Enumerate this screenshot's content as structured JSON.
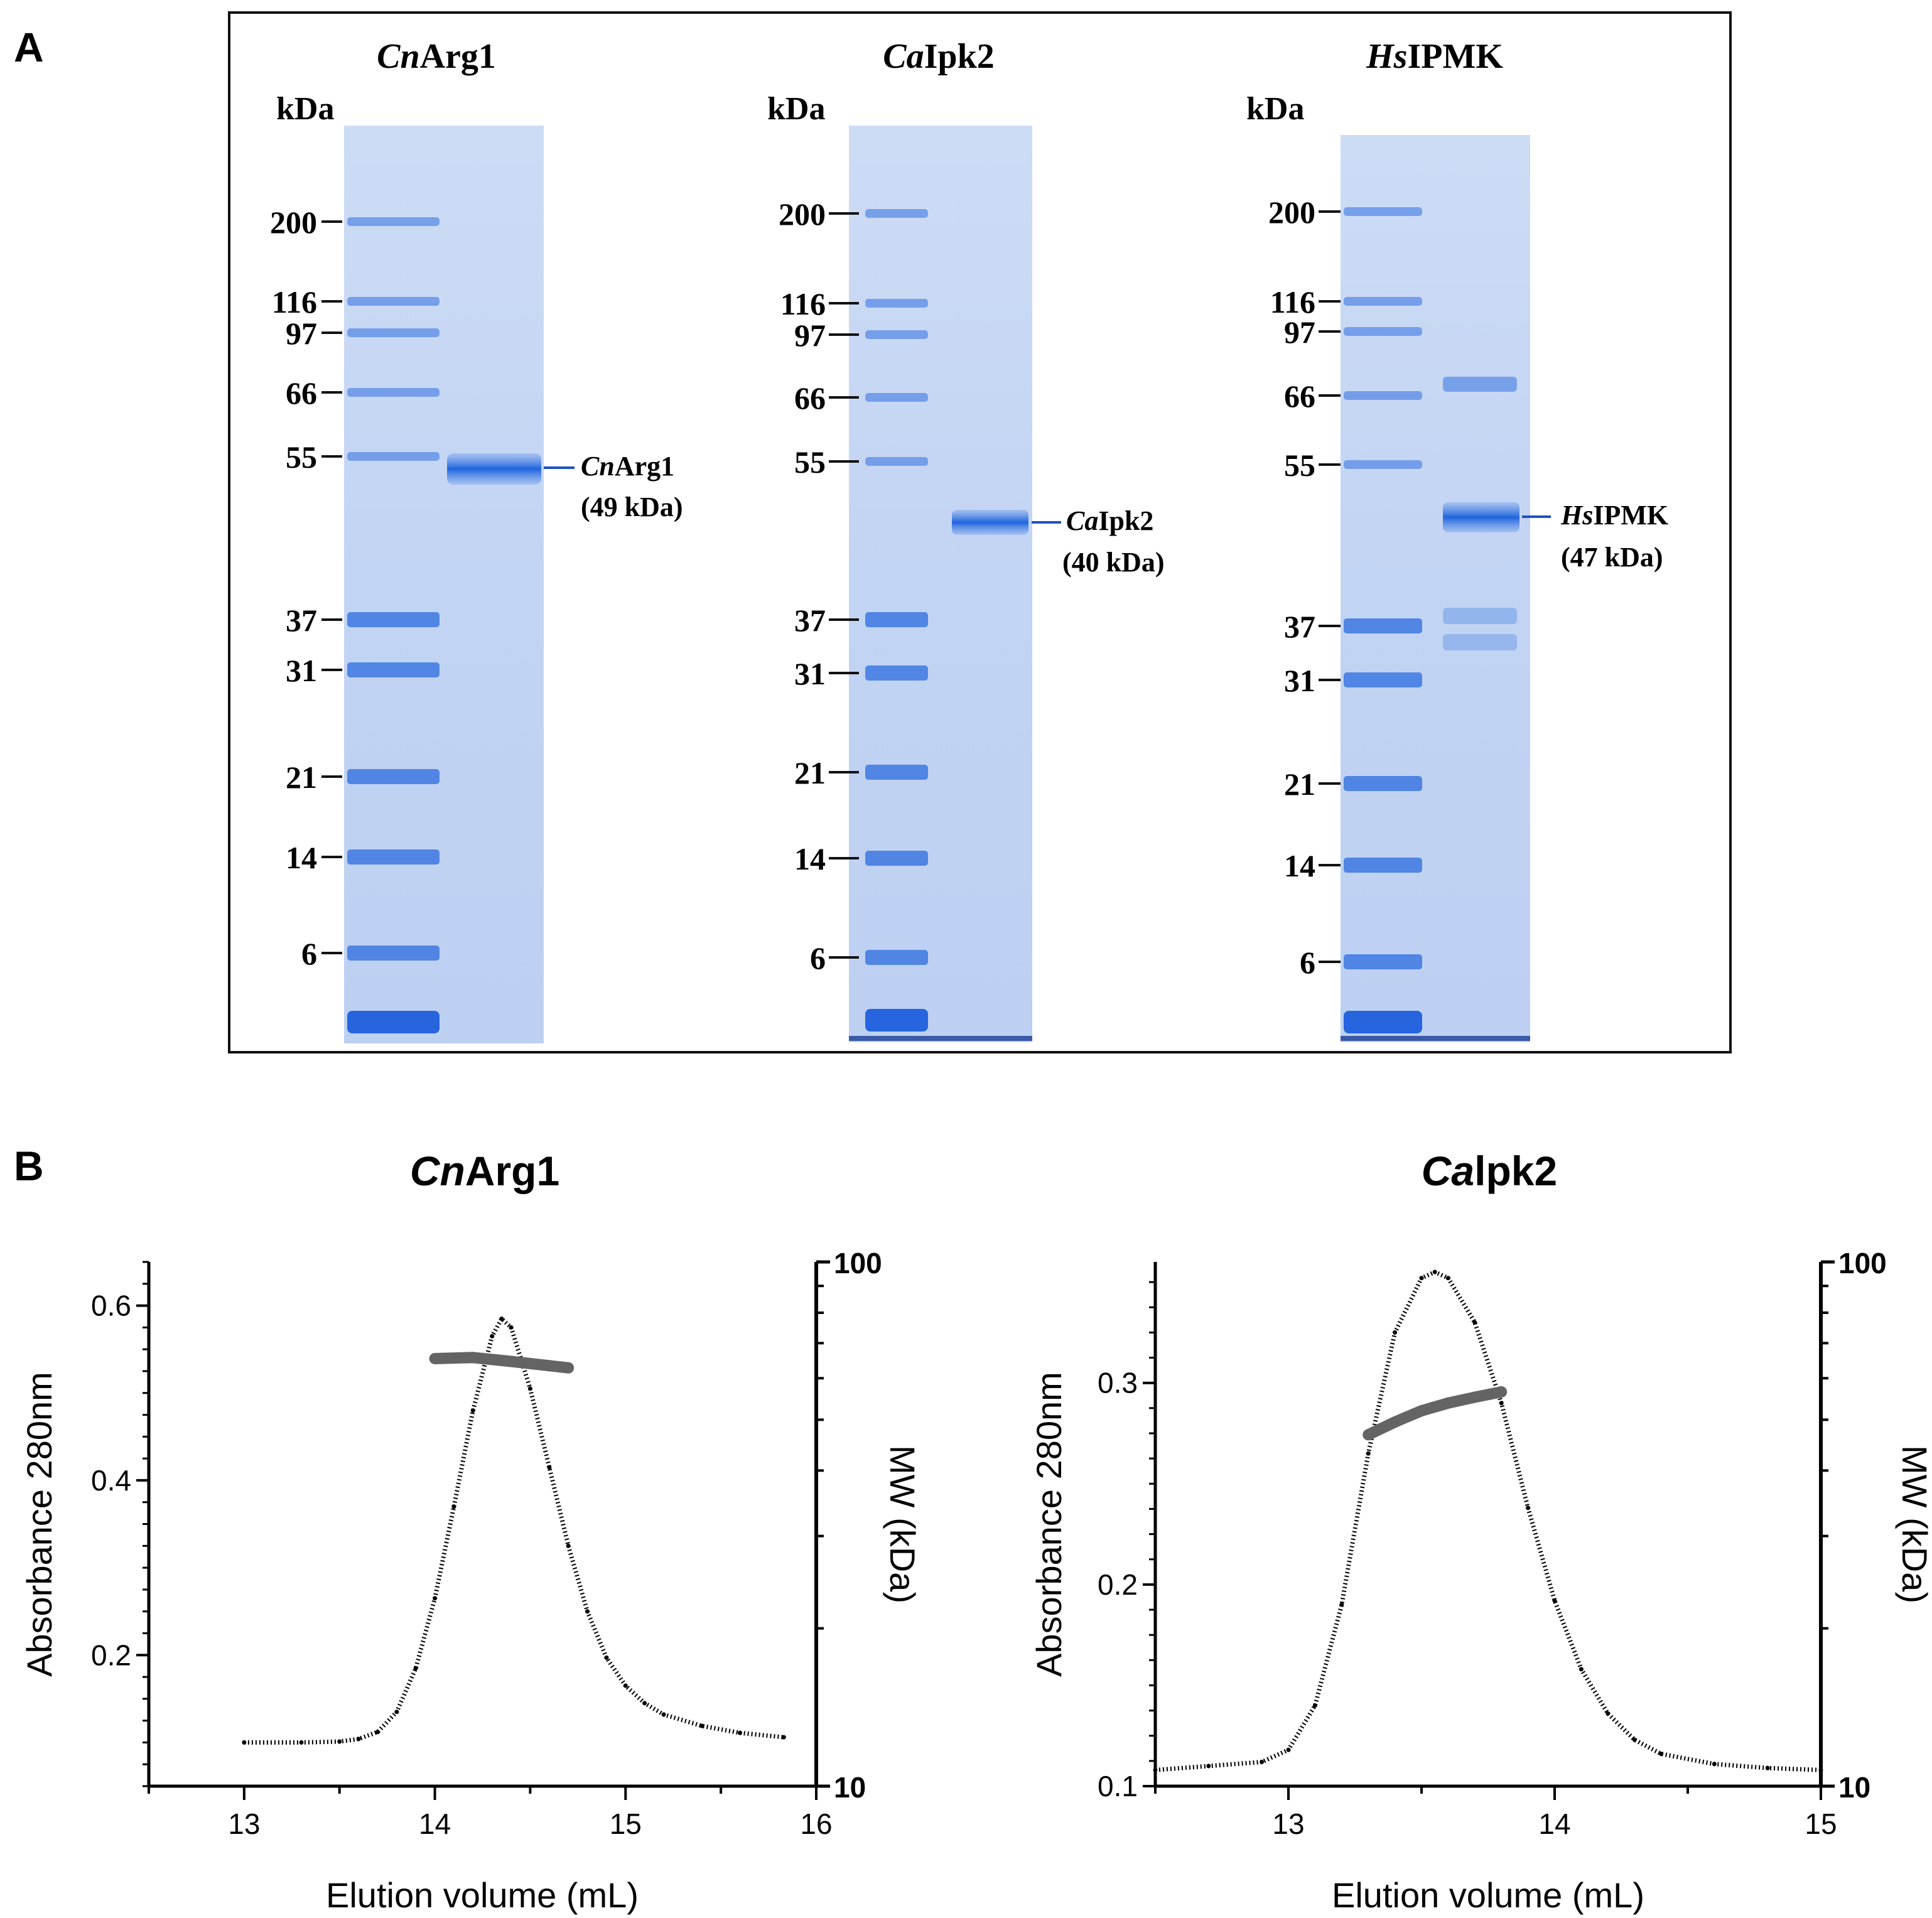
{
  "panelA": {
    "letter": "A",
    "gels": [
      {
        "title_italic": "Cn",
        "title_rest": "Arg1",
        "unit": "kDa",
        "markers": [
          "200",
          "116",
          "97",
          "66",
          "55",
          "37",
          "31",
          "21",
          "14",
          "6"
        ],
        "band_label_italic": "Cn",
        "band_label_rest": "Arg1",
        "band_size": "(49 kDa)"
      },
      {
        "title_italic": "Ca",
        "title_rest": "Ipk2",
        "unit": "kDa",
        "markers": [
          "200",
          "116",
          "97",
          "66",
          "55",
          "37",
          "31",
          "21",
          "14",
          "6"
        ],
        "band_label_italic": "Ca",
        "band_label_rest": "Ipk2",
        "band_size": "(40 kDa)"
      },
      {
        "title_italic": "Hs",
        "title_rest": "IPMK",
        "unit": "kDa",
        "markers": [
          "200",
          "116",
          "97",
          "66",
          "55",
          "37",
          "31",
          "21",
          "14",
          "6"
        ],
        "band_label_italic": "Hs",
        "band_label_rest": "IPMK",
        "band_size": "(47 kDa)"
      }
    ]
  },
  "panelB": {
    "letter": "B"
  },
  "chart_data": [
    {
      "type": "line",
      "title_italic": "Cn",
      "title_rest": "Arg1",
      "xlabel": "Elution volume (mL)",
      "ylabel": "Absorbance 280nm",
      "y2label": "MW (kDa)",
      "xlim": [
        12.5,
        16
      ],
      "ylim": [
        0.05,
        0.65
      ],
      "y2lim": [
        10,
        100
      ],
      "y2scale": "log",
      "xticks": [
        "13",
        "14",
        "15",
        "16"
      ],
      "yticks": [
        "0.2",
        "0.4",
        "0.6"
      ],
      "y2ticks": [
        "10",
        "100"
      ],
      "series": [
        {
          "name": "Absorbance 280nm",
          "x": [
            13.0,
            13.3,
            13.5,
            13.6,
            13.7,
            13.8,
            13.9,
            14.0,
            14.1,
            14.2,
            14.3,
            14.35,
            14.4,
            14.5,
            14.6,
            14.7,
            14.8,
            14.9,
            15.0,
            15.1,
            15.2,
            15.4,
            15.6,
            15.83
          ],
          "y": [
            0.1,
            0.1,
            0.101,
            0.104,
            0.112,
            0.135,
            0.185,
            0.265,
            0.37,
            0.48,
            0.565,
            0.585,
            0.575,
            0.505,
            0.415,
            0.325,
            0.25,
            0.197,
            0.165,
            0.145,
            0.132,
            0.119,
            0.111,
            0.106
          ]
        },
        {
          "name": "MW (kDa)",
          "x": [
            14.0,
            14.2,
            14.4,
            14.6,
            14.7
          ],
          "y": [
            65.4,
            65.7,
            64.6,
            63.4,
            62.8
          ]
        }
      ]
    },
    {
      "type": "line",
      "title_italic": "Ca",
      "title_rest": "lpk2",
      "xlabel": "Elution volume (mL)",
      "ylabel": "Absorbance 280nm",
      "y2label": "MW (kDa)",
      "xlim": [
        12.5,
        15
      ],
      "ylim": [
        0.1,
        0.36
      ],
      "y2lim": [
        10,
        100
      ],
      "y2scale": "log",
      "xticks": [
        "13",
        "14",
        "15"
      ],
      "yticks": [
        "0.1",
        "0.2",
        "0.3"
      ],
      "y2ticks": [
        "10",
        "100"
      ],
      "series": [
        {
          "name": "Absorbance 280nm",
          "x": [
            12.5,
            12.7,
            12.9,
            13.0,
            13.1,
            13.2,
            13.3,
            13.4,
            13.5,
            13.55,
            13.6,
            13.7,
            13.8,
            13.9,
            14.0,
            14.1,
            14.2,
            14.3,
            14.4,
            14.6,
            14.8,
            15.0
          ],
          "y": [
            0.108,
            0.11,
            0.112,
            0.118,
            0.14,
            0.19,
            0.265,
            0.325,
            0.352,
            0.355,
            0.352,
            0.33,
            0.29,
            0.238,
            0.192,
            0.158,
            0.136,
            0.123,
            0.116,
            0.111,
            0.109,
            0.108
          ]
        },
        {
          "name": "MW (kDa)",
          "x": [
            13.3,
            13.4,
            13.5,
            13.6,
            13.7,
            13.8
          ],
          "y": [
            46.8,
            49.5,
            52.0,
            53.8,
            55.2,
            56.5
          ]
        }
      ]
    }
  ]
}
